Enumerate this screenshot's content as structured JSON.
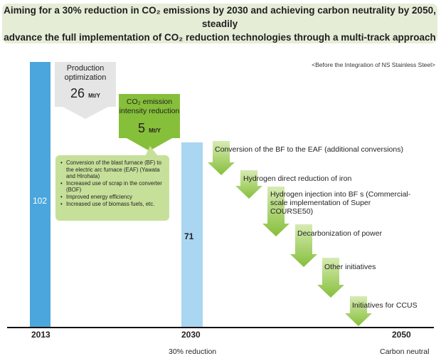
{
  "banner": {
    "line1": "Aiming for a 30% reduction in CO₂ emissions by 2030 and achieving carbon neutrality by 2050, steadily",
    "line2": "advance the full implementation of CO₂ reduction technologies through a multi-track approach"
  },
  "note": "<Before the Integration of NS Stainless Steel>",
  "production_optimization": {
    "label_line1": "Production",
    "label_line2": "optimization",
    "value": "26",
    "unit": "Mt/Y"
  },
  "intensity_reduction": {
    "label_line1": "CO₂ emission",
    "label_line2": "intensity reduction",
    "value": "5",
    "unit": "Mt/Y"
  },
  "bubble_items": [
    "Conversion of the blast furnace (BF) to the electric arc furnace (EAF) (Yawata and Hirohata)",
    "Increased use of scrap in the converter (BOF)",
    "Improved energy efficiency",
    "Increased use of biomass fuels, etc."
  ],
  "colors": {
    "bar_2013": "#4aa6dc",
    "bar_2030": "#a9d6f1",
    "green_dark": "#86bf3a",
    "green_light": "#d7ebb4",
    "banner_bg": "#e6edd7"
  },
  "chart_data": {
    "type": "bar",
    "categories": [
      "2013",
      "2030",
      "2050"
    ],
    "values": [
      102,
      71,
      0
    ],
    "value_labels": [
      "102",
      "71",
      ""
    ],
    "ylim": [
      0,
      102
    ],
    "x_sublabels": [
      "",
      "30% reduction",
      "Carbon neutral"
    ],
    "initiatives": [
      "Conversion of the BF to the EAF (additional conversions)",
      "Hydrogen direct reduction of iron",
      "Hydrogen injection into BF s (Commercial-scale implementation of Super COURSE50)",
      "Decarbonization of power",
      "Other initiatives",
      "Initiatives for CCUS"
    ]
  }
}
